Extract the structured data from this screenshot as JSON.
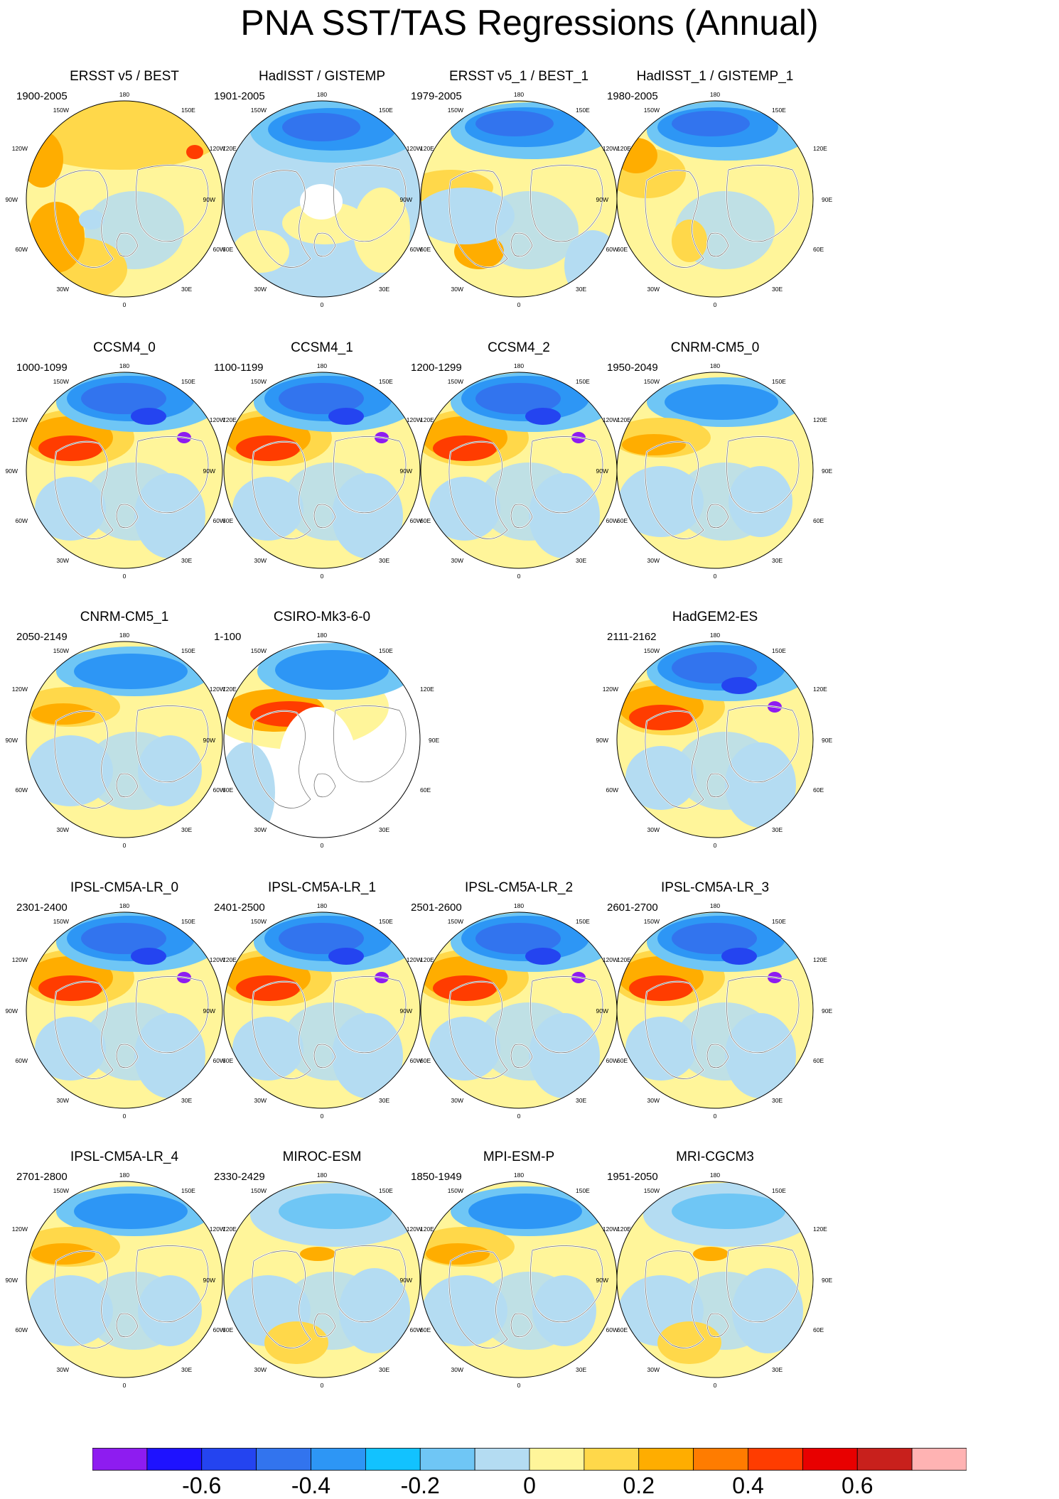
{
  "title": "PNA SST/TAS Regressions (Annual)",
  "map_labels": {
    "top": "180",
    "bottom": "0",
    "left": "90W",
    "right": "90E",
    "upper_left_1": "150W",
    "upper_left_2": "120W",
    "upper_right_1": "150E",
    "upper_right_2": "120E",
    "lower_left_1": "60W",
    "lower_left_2": "30W",
    "lower_right_1": "60E",
    "lower_right_2": "30E"
  },
  "panels": [
    {
      "title": "ERSST v5 / BEST",
      "period": "1900-2005",
      "pattern": "obs_warm"
    },
    {
      "title": "HadISST / GISTEMP",
      "period": "1901-2005",
      "pattern": "obs_cool"
    },
    {
      "title": "ERSST v5_1 / BEST_1",
      "period": "1979-2005",
      "pattern": "obs_recent"
    },
    {
      "title": "HadISST_1 / GISTEMP_1",
      "period": "1980-2005",
      "pattern": "obs_recent2"
    },
    {
      "title": "CCSM4_0",
      "period": "1000-1099",
      "pattern": "model_strong"
    },
    {
      "title": "CCSM4_1",
      "period": "1100-1199",
      "pattern": "model_strong"
    },
    {
      "title": "CCSM4_2",
      "period": "1200-1299",
      "pattern": "model_strong"
    },
    {
      "title": "CNRM-CM5_0",
      "period": "1950-2049",
      "pattern": "model_weak"
    },
    {
      "title": "CNRM-CM5_1",
      "period": "2050-2149",
      "pattern": "model_weak"
    },
    {
      "title": "CSIRO-Mk3-6-0",
      "period": "1-100",
      "pattern": "model_ocean_only"
    },
    null,
    {
      "title": "HadGEM2-ES",
      "period": "2111-2162",
      "pattern": "model_strong"
    },
    {
      "title": "IPSL-CM5A-LR_0",
      "period": "2301-2400",
      "pattern": "model_strong"
    },
    {
      "title": "IPSL-CM5A-LR_1",
      "period": "2401-2500",
      "pattern": "model_strong"
    },
    {
      "title": "IPSL-CM5A-LR_2",
      "period": "2501-2600",
      "pattern": "model_strong"
    },
    {
      "title": "IPSL-CM5A-LR_3",
      "period": "2601-2700",
      "pattern": "model_strong"
    },
    {
      "title": "IPSL-CM5A-LR_4",
      "period": "2701-2800",
      "pattern": "model_weak"
    },
    {
      "title": "MIROC-ESM",
      "period": "2330-2429",
      "pattern": "model_miroc"
    },
    {
      "title": "MPI-ESM-P",
      "period": "1850-1949",
      "pattern": "model_weak"
    },
    {
      "title": "MRI-CGCM3",
      "period": "1951-2050",
      "pattern": "model_miroc"
    }
  ],
  "colorbar": {
    "colors": [
      "#8e1cf0",
      "#1e12ff",
      "#2444f0",
      "#3274ee",
      "#2d96f5",
      "#12c2ff",
      "#6fc6f5",
      "#b4dcf2",
      "#fff59a",
      "#ffd84a",
      "#ffad00",
      "#ff7c00",
      "#ff3c00",
      "#e80000",
      "#c8201c",
      "#ffb3b3"
    ],
    "labels": [
      "-0.6",
      "-0.4",
      "-0.2",
      "0",
      "0.2",
      "0.4",
      "0.6"
    ],
    "label_boundaries": [
      2,
      4,
      6,
      8,
      10,
      12,
      14
    ]
  }
}
